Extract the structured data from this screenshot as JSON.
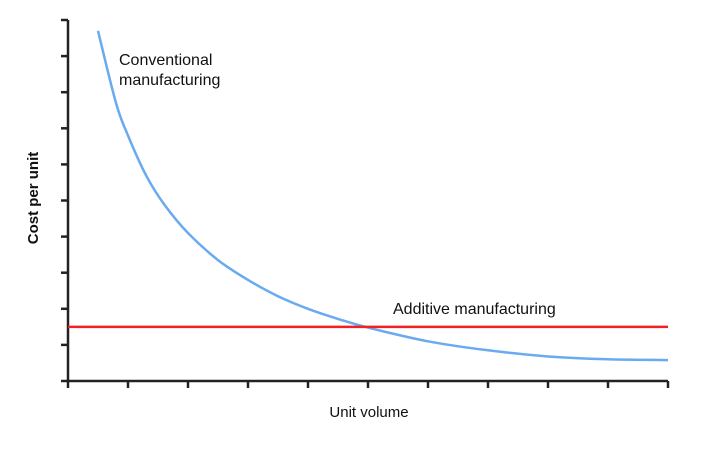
{
  "chart_data": {
    "type": "line",
    "title": "",
    "xlabel": "Unit volume",
    "ylabel": "Cost per unit",
    "xlim": [
      0,
      10
    ],
    "ylim": [
      0,
      10
    ],
    "x_ticks": [
      0,
      1,
      2,
      3,
      4,
      5,
      6,
      7,
      8,
      9,
      10
    ],
    "y_ticks": [
      0,
      1,
      2,
      3,
      4,
      5,
      6,
      7,
      8,
      9,
      10
    ],
    "grid": false,
    "series": [
      {
        "name": "Conventional manufacturing",
        "label_lines": [
          "Conventional",
          "manufacturing"
        ],
        "color": "#6aaaf0",
        "x": [
          0.5,
          0.8,
          1.0,
          1.3,
          1.6,
          2.0,
          2.5,
          3.0,
          3.5,
          4.0,
          4.5,
          5.0,
          6.0,
          7.0,
          8.0,
          9.0,
          10.0
        ],
        "y": [
          9.7,
          7.7,
          6.8,
          5.7,
          4.9,
          4.1,
          3.35,
          2.8,
          2.35,
          2.0,
          1.72,
          1.48,
          1.1,
          0.85,
          0.68,
          0.6,
          0.58
        ]
      },
      {
        "name": "Additive manufacturing",
        "label_lines": [
          "Additive manufacturing"
        ],
        "color": "#ee2222",
        "x": [
          0,
          10
        ],
        "y": [
          1.5,
          1.5
        ]
      }
    ]
  }
}
